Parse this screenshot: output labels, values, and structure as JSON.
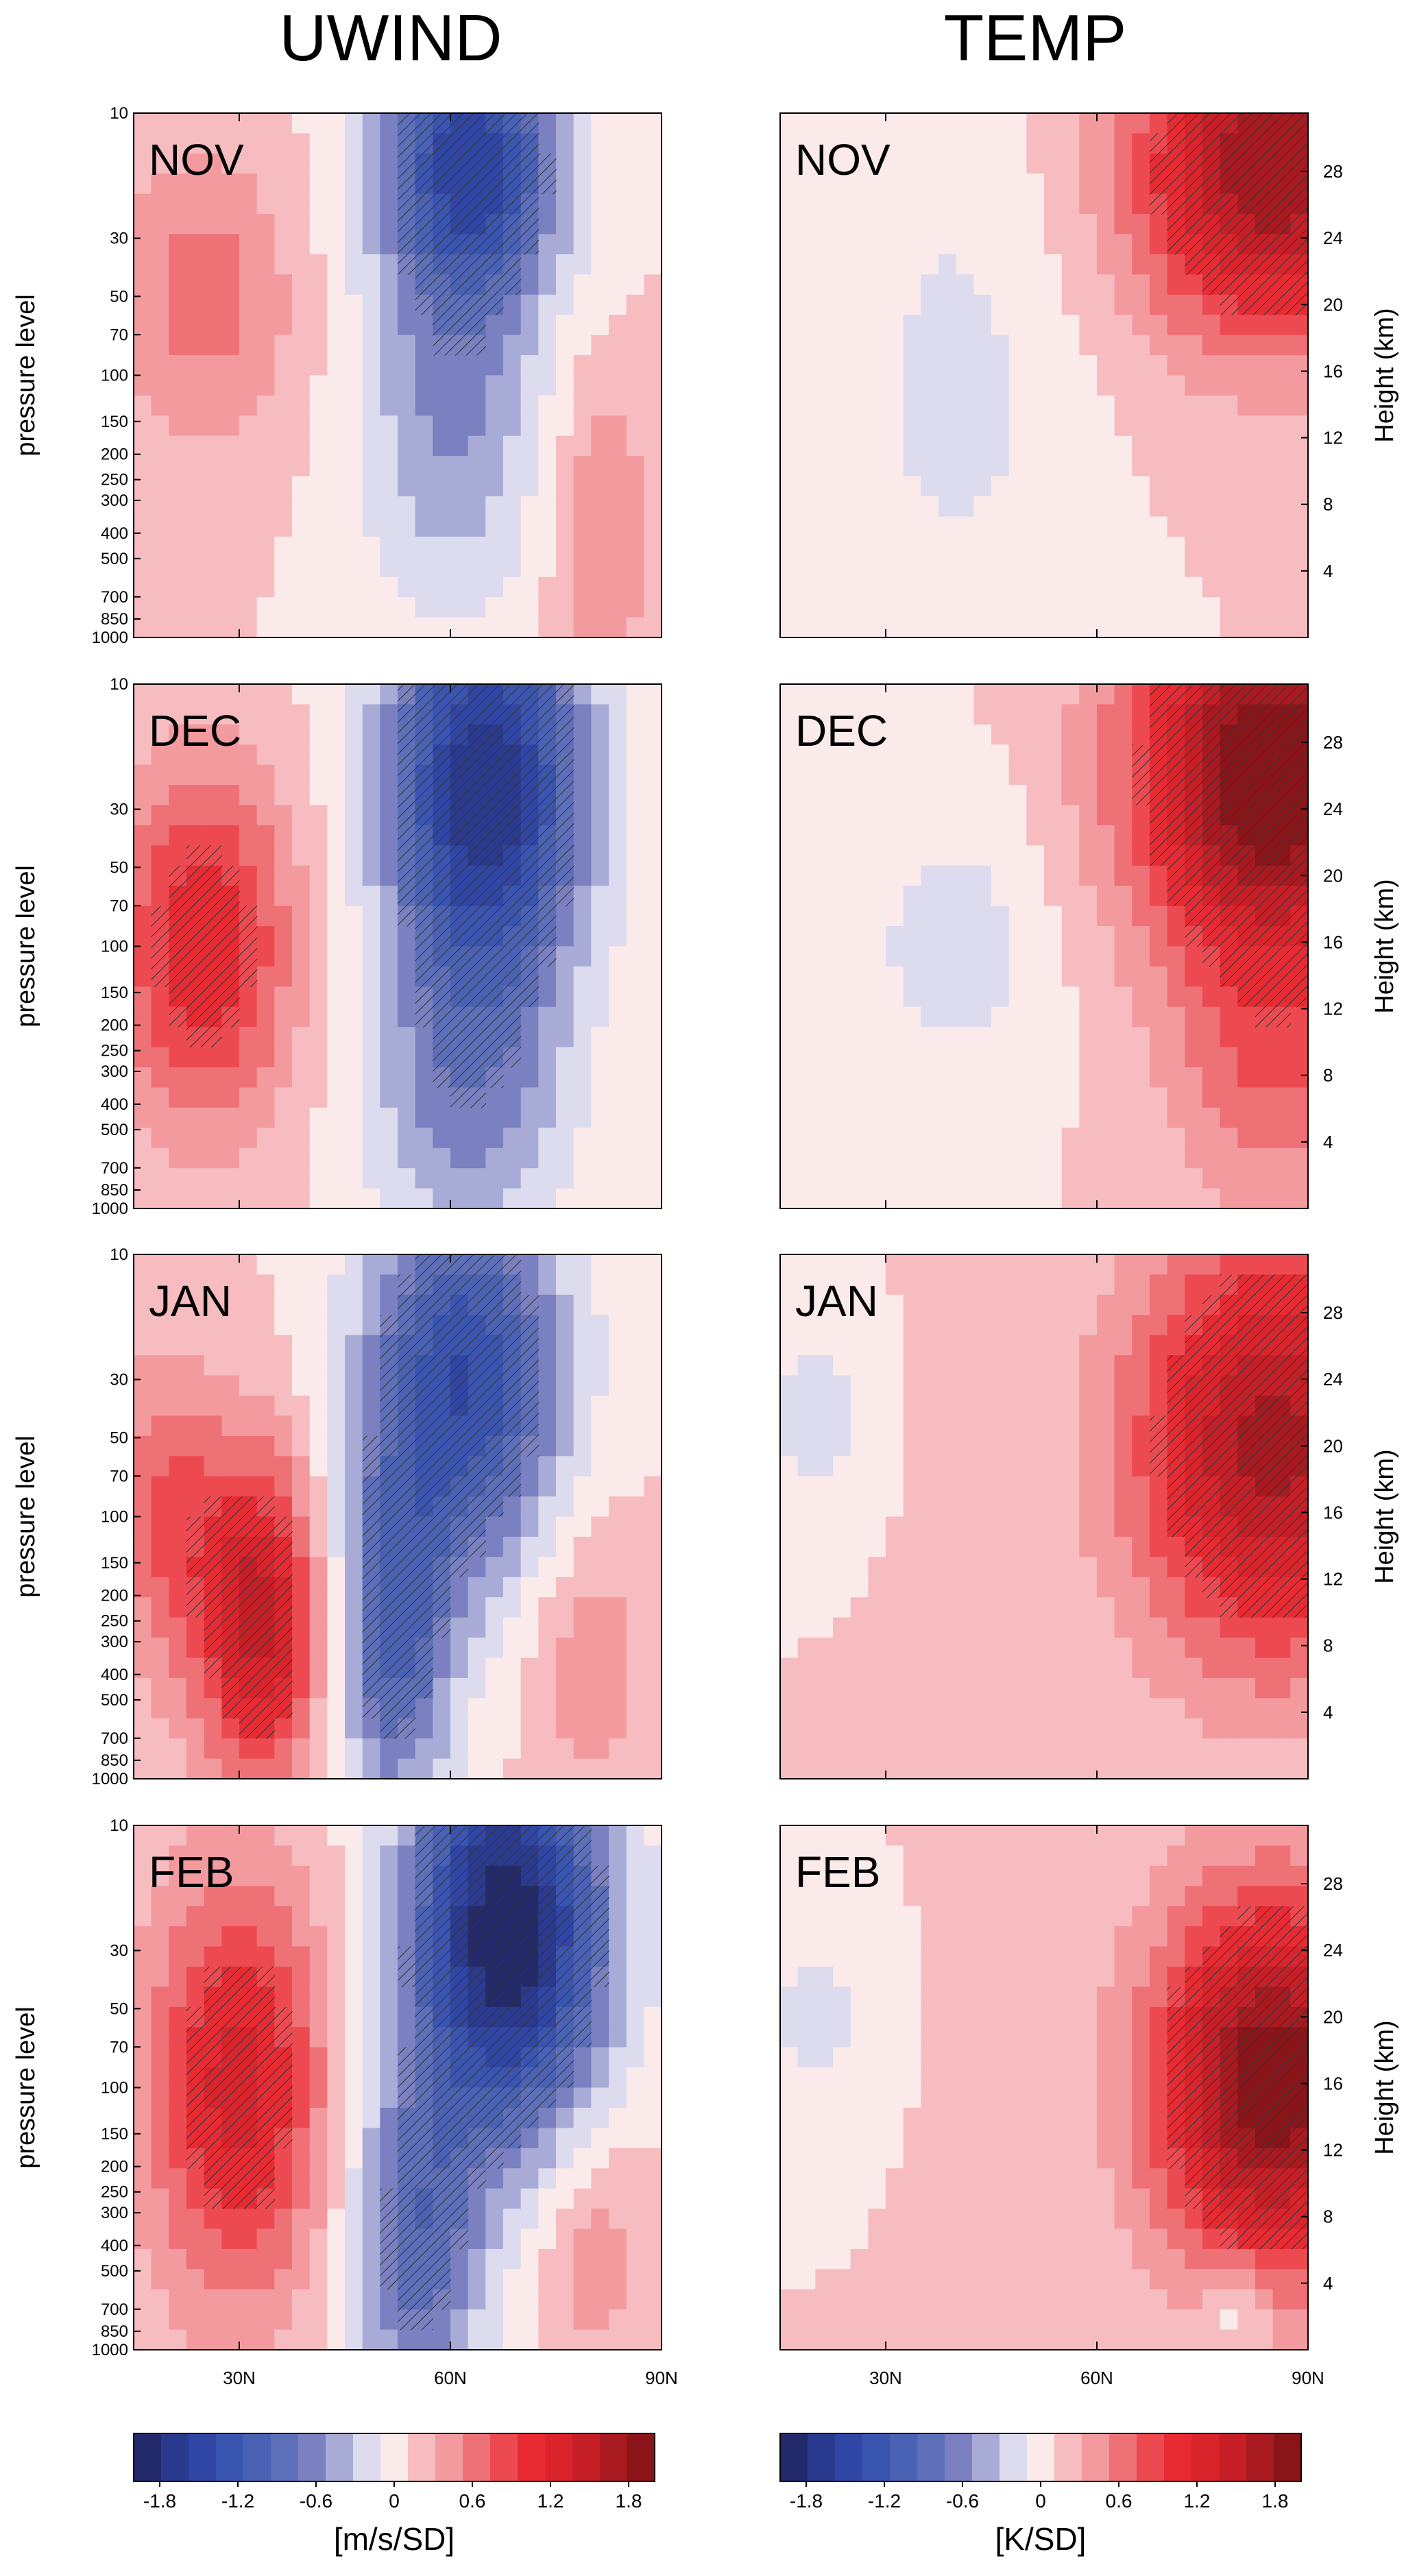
{
  "column_titles": [
    "UWIND",
    "TEMP"
  ],
  "colors": {
    "palette": [
      "#232a6b",
      "#2a3a8f",
      "#3046a5",
      "#3a55b0",
      "#4a62b4",
      "#5c6fb8",
      "#7a80c0",
      "#a8abd6",
      "#dcdcee",
      "#fbeaea",
      "#f6bcbf",
      "#f29a9e",
      "#ee7176",
      "#ec4a50",
      "#e82b33",
      "#d9242c",
      "#c71f27",
      "#a81a20",
      "#8a1418"
    ]
  },
  "chart_data": [
    {
      "type": "heatmap",
      "name": "UWIND",
      "title": "UWIND",
      "ylabel": "pressure level",
      "x_ticks": [
        "30N",
        "60N",
        "90N"
      ],
      "x_range": [
        15,
        90
      ],
      "y_ticks": [
        "10",
        "30",
        "50",
        "70",
        "100",
        "150",
        "200",
        "250",
        "300",
        "400",
        "500",
        "700",
        "850",
        "1000"
      ],
      "y_range_hPa": [
        1000,
        10
      ],
      "y_scale": "log",
      "months": [
        "NOV",
        "DEC",
        "JAN",
        "FEB"
      ],
      "colorbar": {
        "label": "[m/s/SD]",
        "tick_labels": [
          "-1.8",
          "-1.2",
          "-0.6",
          "0",
          "0.6",
          "1.2",
          "1.8"
        ],
        "levels": [
          -2.0,
          -1.8,
          -1.6,
          -1.4,
          -1.2,
          -1.0,
          -0.8,
          -0.6,
          -0.4,
          -0.2,
          0.0,
          0.2,
          0.4,
          0.6,
          0.8,
          1.0,
          1.2,
          1.4,
          1.6,
          1.8,
          2.0
        ]
      },
      "features": {
        "NOV": [
          {
            "lat": 25,
            "p": 50,
            "value": 0.5,
            "lat_sigma": 9,
            "logp_sigma": 0.9
          },
          {
            "lat": 63,
            "p": 15,
            "value": -1.5,
            "lat_sigma": 9,
            "logp_sigma": 0.9
          },
          {
            "lat": 60,
            "p": 150,
            "value": -0.6,
            "lat_sigma": 9,
            "logp_sigma": 1.2
          },
          {
            "lat": 82,
            "p": 400,
            "value": 0.4,
            "lat_sigma": 5,
            "logp_sigma": 1.0
          }
        ],
        "DEC": [
          {
            "lat": 25,
            "p": 100,
            "value": 1.0,
            "lat_sigma": 9,
            "logp_sigma": 1.1
          },
          {
            "lat": 65,
            "p": 25,
            "value": -1.8,
            "lat_sigma": 10,
            "logp_sigma": 1.3
          },
          {
            "lat": 62,
            "p": 400,
            "value": -0.6,
            "lat_sigma": 10,
            "logp_sigma": 1.0
          }
        ],
        "JAN": [
          {
            "lat": 33,
            "p": 250,
            "value": 1.3,
            "lat_sigma": 6,
            "logp_sigma": 1.0
          },
          {
            "lat": 20,
            "p": 100,
            "value": 0.6,
            "lat_sigma": 6,
            "logp_sigma": 1.0
          },
          {
            "lat": 62,
            "p": 30,
            "value": -1.4,
            "lat_sigma": 10,
            "logp_sigma": 1.2
          },
          {
            "lat": 52,
            "p": 300,
            "value": -1.0,
            "lat_sigma": 6,
            "logp_sigma": 1.1
          },
          {
            "lat": 80,
            "p": 350,
            "value": 0.35,
            "lat_sigma": 6,
            "logp_sigma": 0.9
          }
        ],
        "FEB": [
          {
            "lat": 30,
            "p": 100,
            "value": 1.1,
            "lat_sigma": 9,
            "logp_sigma": 1.3
          },
          {
            "lat": 68,
            "p": 25,
            "value": -2.0,
            "lat_sigma": 10,
            "logp_sigma": 1.3
          },
          {
            "lat": 55,
            "p": 400,
            "value": -0.9,
            "lat_sigma": 7,
            "logp_sigma": 1.1
          },
          {
            "lat": 80,
            "p": 400,
            "value": 0.35,
            "lat_sigma": 6,
            "logp_sigma": 0.8
          }
        ]
      }
    },
    {
      "type": "heatmap",
      "name": "TEMP",
      "title": "TEMP",
      "ylabel": "Height (km)",
      "x_ticks": [
        "30N",
        "60N",
        "90N"
      ],
      "x_range": [
        15,
        90
      ],
      "y_ticks": [
        "4",
        "8",
        "12",
        "16",
        "20",
        "24",
        "28"
      ],
      "y_range_km": [
        0,
        31.5
      ],
      "months": [
        "NOV",
        "DEC",
        "JAN",
        "FEB"
      ],
      "colorbar": {
        "label": "[K/SD]",
        "tick_labels": [
          "-1.8",
          "-1.2",
          "-0.6",
          "0",
          "0.6",
          "1.2",
          "1.8"
        ],
        "levels": [
          -2.0,
          -1.8,
          -1.6,
          -1.4,
          -1.2,
          -1.0,
          -0.8,
          -0.6,
          -0.4,
          -0.2,
          0.0,
          0.2,
          0.4,
          0.6,
          0.8,
          1.0,
          1.2,
          1.4,
          1.6,
          1.8,
          2.0
        ]
      },
      "features": {
        "NOV": [
          {
            "lat": 85,
            "km": 28,
            "value": 1.6,
            "lat_sigma": 14,
            "z_sigma": 7
          },
          {
            "lat": 40,
            "km": 15,
            "value": -0.25,
            "lat_sigma": 12,
            "z_sigma": 12
          }
        ],
        "DEC": [
          {
            "lat": 85,
            "km": 26,
            "value": 1.9,
            "lat_sigma": 14,
            "z_sigma": 8
          },
          {
            "lat": 85,
            "km": 8,
            "value": 0.5,
            "lat_sigma": 10,
            "z_sigma": 6
          },
          {
            "lat": 40,
            "km": 16,
            "value": -0.3,
            "lat_sigma": 10,
            "z_sigma": 6
          }
        ],
        "JAN": [
          {
            "lat": 85,
            "km": 20,
            "value": 1.5,
            "lat_sigma": 14,
            "z_sigma": 9
          },
          {
            "lat": 20,
            "km": 22,
            "value": -0.4,
            "lat_sigma": 4,
            "z_sigma": 3
          }
        ],
        "FEB": [
          {
            "lat": 85,
            "km": 16,
            "value": 1.8,
            "lat_sigma": 12,
            "z_sigma": 8
          },
          {
            "lat": 20,
            "km": 20,
            "value": -0.4,
            "lat_sigma": 4,
            "z_sigma": 3
          },
          {
            "lat": 80,
            "km": 2.5,
            "value": -0.4,
            "lat_sigma": 3,
            "z_sigma": 2
          }
        ]
      }
    }
  ]
}
